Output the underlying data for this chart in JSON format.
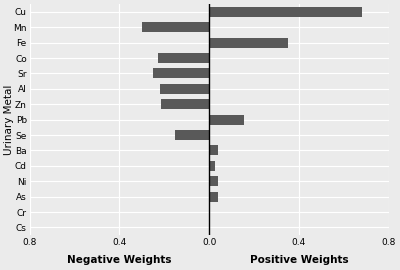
{
  "metals": [
    "Cu",
    "Mn",
    "Fe",
    "Co",
    "Sr",
    "Al",
    "Zn",
    "Pb",
    "Se",
    "Ba",
    "Cd",
    "Ni",
    "As",
    "Cr",
    "Cs"
  ],
  "values": [
    0.68,
    -0.3,
    0.35,
    -0.23,
    -0.25,
    -0.22,
    -0.215,
    0.155,
    -0.15,
    0.04,
    0.025,
    0.038,
    0.038,
    0.003,
    0.001
  ],
  "bar_color": "#595959",
  "background_color": "#ebebeb",
  "grid_color": "#ffffff",
  "ylabel": "Urinary Metal",
  "xlabel_neg": "Negative Weights",
  "xlabel_pos": "Positive Weights",
  "xlim": [
    -0.8,
    0.8
  ],
  "xticks": [
    -0.8,
    -0.4,
    0.0,
    0.4,
    0.8
  ],
  "xtick_labels": [
    "0.8",
    "0.4",
    "0.0",
    "0.4",
    "0.8"
  ],
  "label_fontsize": 7.5,
  "tick_fontsize": 6.5,
  "ylabel_fontsize": 7.5
}
